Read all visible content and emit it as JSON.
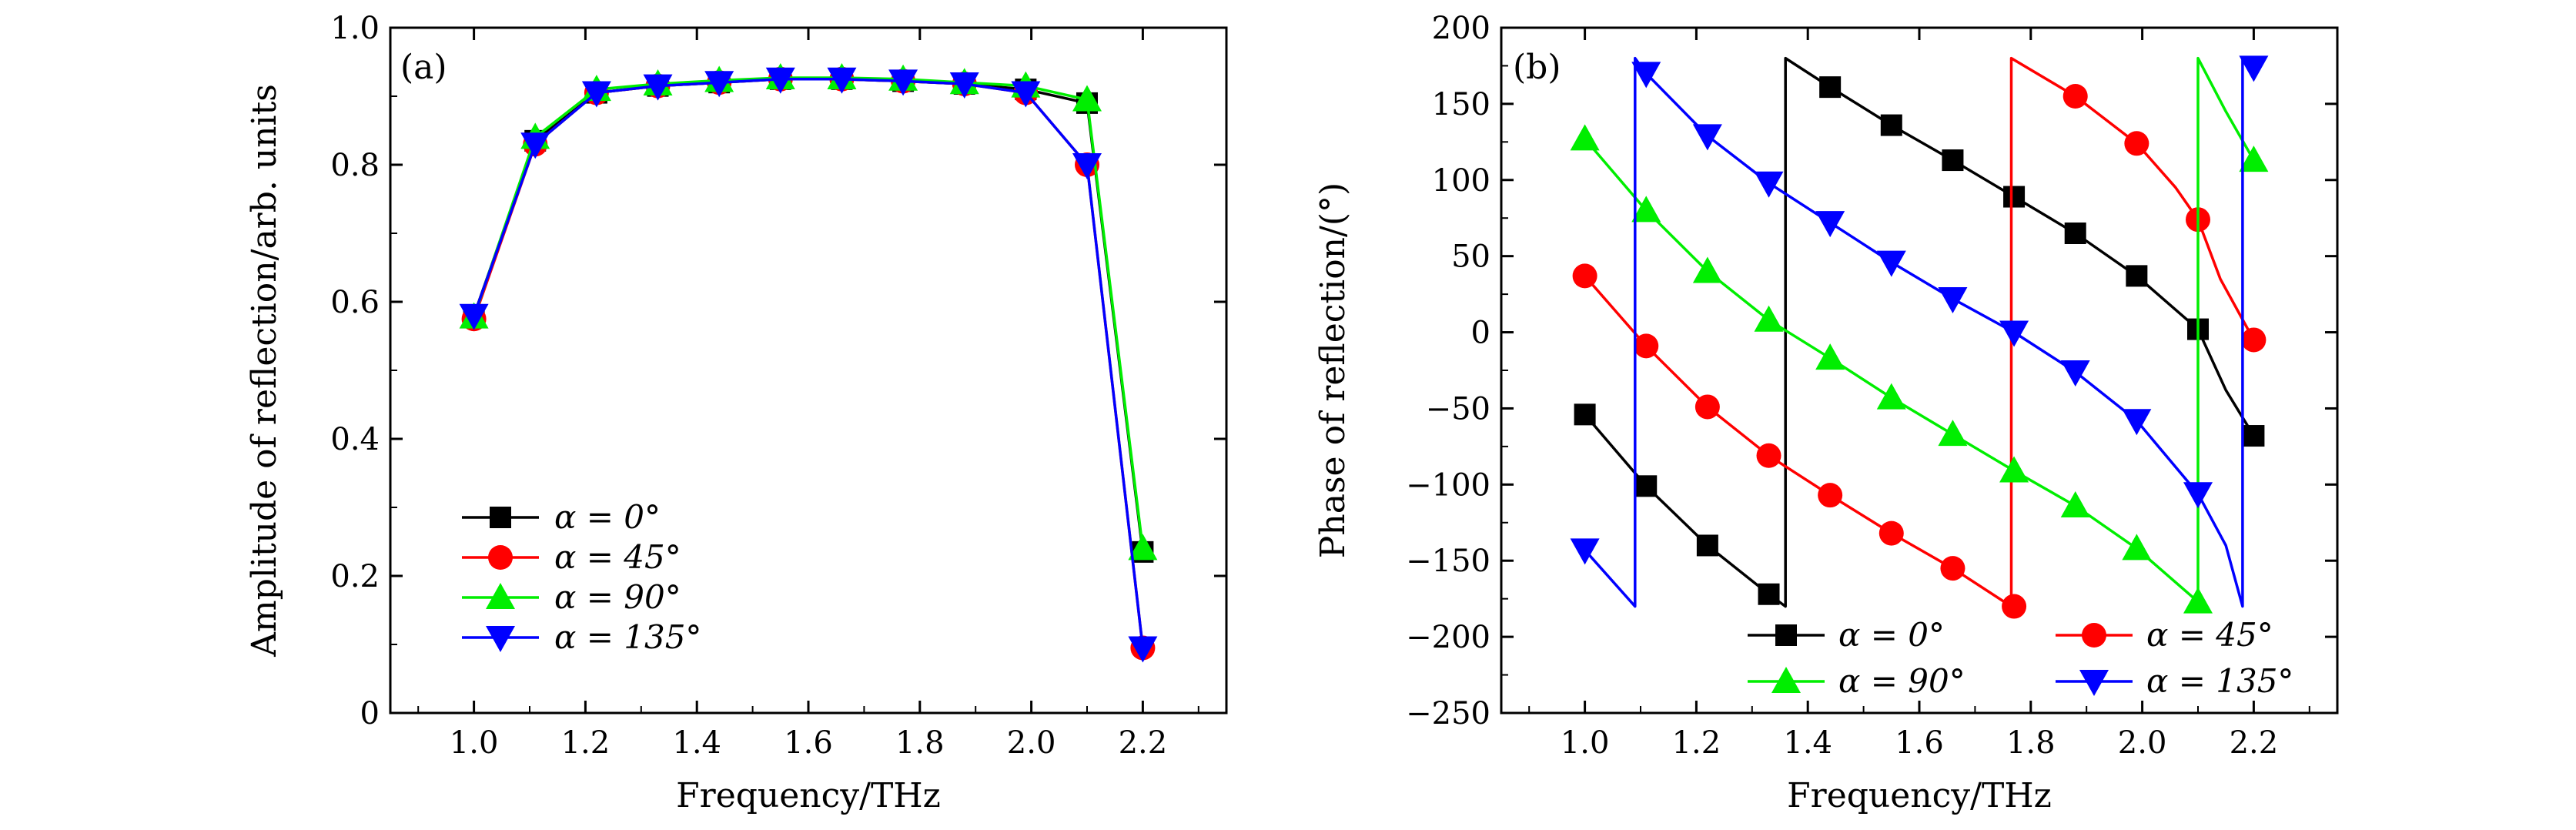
{
  "chart_data": [
    {
      "type": "line",
      "panel_label": "(a)",
      "xlabel": "Frequency/THz",
      "ylabel": "Amplitude of reflection/arb. units",
      "xlim": [
        0.85,
        2.35
      ],
      "ylim": [
        0,
        1.0
      ],
      "xticks": [
        1.0,
        1.2,
        1.4,
        1.6,
        1.8,
        2.0,
        2.2
      ],
      "xtick_labels": [
        "1.0",
        "1.2",
        "1.4",
        "1.6",
        "1.8",
        "2.0",
        "2.2"
      ],
      "yticks": [
        0,
        0.2,
        0.4,
        0.6,
        0.8,
        1.0
      ],
      "ytick_labels": [
        "0",
        "0.2",
        "0.4",
        "0.6",
        "0.8",
        "1.0"
      ],
      "legend_position": "bottom-left",
      "x": [
        1.0,
        1.11,
        1.22,
        1.33,
        1.44,
        1.55,
        1.66,
        1.77,
        1.88,
        1.99,
        2.1,
        2.2
      ],
      "series": [
        {
          "name": "α = 0°",
          "color": "#000000",
          "marker": "square",
          "values": [
            0.58,
            0.835,
            0.905,
            0.915,
            0.92,
            0.925,
            0.925,
            0.922,
            0.918,
            0.91,
            0.89,
            0.235
          ]
        },
        {
          "name": "α = 45°",
          "color": "#ff0000",
          "marker": "circle",
          "values": [
            0.575,
            0.83,
            0.905,
            0.915,
            0.92,
            0.925,
            0.925,
            0.922,
            0.918,
            0.905,
            0.8,
            0.095
          ]
        },
        {
          "name": "α = 90°",
          "color": "#00ee00",
          "marker": "triangle-up",
          "values": [
            0.578,
            0.84,
            0.91,
            0.918,
            0.923,
            0.927,
            0.927,
            0.925,
            0.92,
            0.915,
            0.895,
            0.24
          ]
        },
        {
          "name": "α = 135°",
          "color": "#0000ff",
          "marker": "triangle-down",
          "values": [
            0.58,
            0.83,
            0.905,
            0.915,
            0.92,
            0.925,
            0.925,
            0.922,
            0.918,
            0.905,
            0.8,
            0.095
          ]
        }
      ]
    },
    {
      "type": "line",
      "panel_label": "(b)",
      "xlabel": "Frequency/THz",
      "ylabel": "Phase of reflection/(°)",
      "xlim": [
        0.85,
        2.35
      ],
      "ylim": [
        -250,
        200
      ],
      "xticks": [
        1.0,
        1.2,
        1.4,
        1.6,
        1.8,
        2.0,
        2.2
      ],
      "xtick_labels": [
        "1.0",
        "1.2",
        "1.4",
        "1.6",
        "1.8",
        "2.0",
        "2.2"
      ],
      "yticks": [
        -250,
        -200,
        -150,
        -100,
        -50,
        0,
        50,
        100,
        150,
        200
      ],
      "ytick_labels": [
        "−250",
        "−200",
        "−150",
        "−100",
        "−50",
        "0",
        "50",
        "100",
        "150",
        "200"
      ],
      "legend_position": "bottom-right",
      "x": [
        1.0,
        1.11,
        1.22,
        1.33,
        1.44,
        1.55,
        1.66,
        1.77,
        1.88,
        1.99,
        2.1,
        2.2
      ],
      "series": [
        {
          "name": "α = 0°",
          "color": "#000000",
          "marker": "square",
          "values": [
            -54,
            -101,
            -140,
            -172,
            161,
            136,
            113,
            89,
            65,
            37,
            2,
            -68
          ],
          "line": [
            [
              1.0,
              -54
            ],
            [
              1.11,
              -101
            ],
            [
              1.22,
              -140
            ],
            [
              1.33,
              -172
            ],
            [
              1.36,
              -180
            ],
            [
              1.36,
              180
            ],
            [
              1.44,
              161
            ],
            [
              1.55,
              136
            ],
            [
              1.66,
              113
            ],
            [
              1.77,
              89
            ],
            [
              1.88,
              65
            ],
            [
              1.99,
              37
            ],
            [
              2.1,
              2
            ],
            [
              2.15,
              -38
            ],
            [
              2.2,
              -68
            ]
          ]
        },
        {
          "name": "α = 45°",
          "color": "#ff0000",
          "marker": "circle",
          "values": [
            37,
            -9,
            -49,
            -81,
            -107,
            -132,
            -155,
            -180,
            155,
            124,
            74,
            -5
          ],
          "line": [
            [
              1.0,
              37
            ],
            [
              1.11,
              -9
            ],
            [
              1.22,
              -49
            ],
            [
              1.33,
              -81
            ],
            [
              1.44,
              -107
            ],
            [
              1.55,
              -132
            ],
            [
              1.66,
              -155
            ],
            [
              1.765,
              -180
            ],
            [
              1.765,
              180
            ],
            [
              1.88,
              155
            ],
            [
              1.99,
              124
            ],
            [
              2.06,
              95
            ],
            [
              2.1,
              74
            ],
            [
              2.14,
              35
            ],
            [
              2.2,
              -5
            ]
          ]
        },
        {
          "name": "α = 90°",
          "color": "#00ee00",
          "marker": "triangle-up",
          "values": [
            127,
            80,
            40,
            8,
            -17,
            -43,
            -67,
            -91,
            -114,
            -142,
            -177,
            113
          ],
          "line": [
            [
              1.0,
              127
            ],
            [
              1.11,
              80
            ],
            [
              1.22,
              40
            ],
            [
              1.33,
              8
            ],
            [
              1.44,
              -17
            ],
            [
              1.55,
              -43
            ],
            [
              1.66,
              -67
            ],
            [
              1.77,
              -91
            ],
            [
              1.88,
              -114
            ],
            [
              1.99,
              -142
            ],
            [
              2.1,
              -177
            ],
            [
              2.1,
              180
            ],
            [
              2.15,
              145
            ],
            [
              2.2,
              113
            ]
          ]
        },
        {
          "name": "α = 135°",
          "color": "#0000ff",
          "marker": "triangle-down",
          "values": [
            -143,
            170,
            129,
            98,
            72,
            46,
            22,
            0,
            -26,
            -58,
            -106,
            174
          ],
          "line": [
            [
              1.0,
              -143
            ],
            [
              1.09,
              -180
            ],
            [
              1.09,
              180
            ],
            [
              1.11,
              170
            ],
            [
              1.22,
              129
            ],
            [
              1.33,
              98
            ],
            [
              1.44,
              72
            ],
            [
              1.55,
              46
            ],
            [
              1.66,
              22
            ],
            [
              1.77,
              0
            ],
            [
              1.88,
              -26
            ],
            [
              1.99,
              -58
            ],
            [
              2.1,
              -106
            ],
            [
              2.15,
              -140
            ],
            [
              2.18,
              -180
            ],
            [
              2.18,
              180
            ],
            [
              2.2,
              174
            ]
          ]
        }
      ]
    }
  ]
}
